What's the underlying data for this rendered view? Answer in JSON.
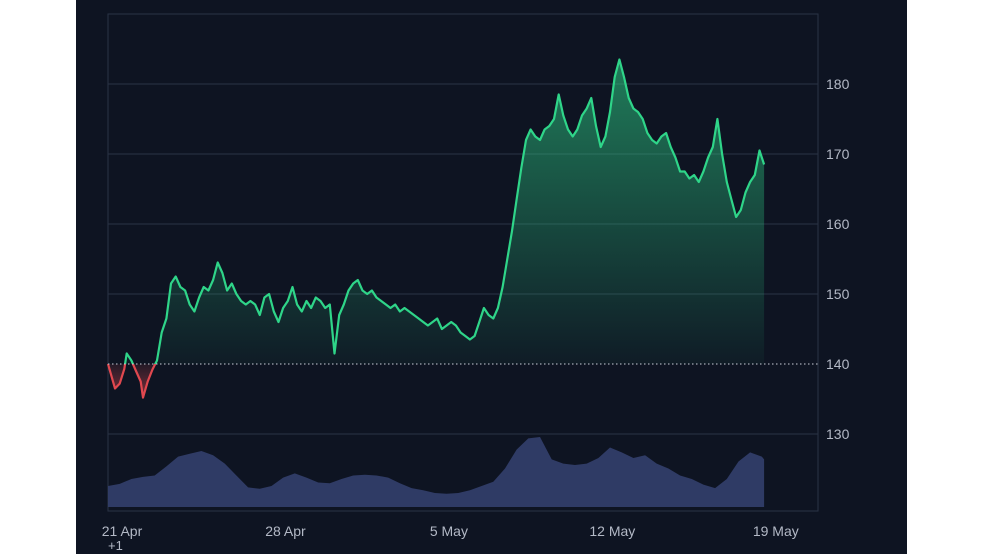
{
  "chart_data": {
    "type": "area",
    "title": "",
    "xlabel": "",
    "ylabel": "",
    "baseline": 140,
    "ylim": [
      121,
      190
    ],
    "grid": true,
    "legend": "none",
    "y_axis_side": "right",
    "x_ticks": [
      {
        "x": 0,
        "label": "21 Apr"
      },
      {
        "x": 7,
        "label": "28 Apr"
      },
      {
        "x": 14,
        "label": "5 May"
      },
      {
        "x": 21,
        "label": "12 May"
      },
      {
        "x": 28,
        "label": "19 May"
      }
    ],
    "y_ticks": [
      130,
      140,
      150,
      160,
      170,
      180
    ],
    "x_range": [
      0,
      30.3
    ],
    "price": [
      [
        0,
        140
      ],
      [
        0.3,
        136.5
      ],
      [
        0.5,
        137.2
      ],
      [
        0.7,
        139.3
      ],
      [
        0.8,
        141.5
      ],
      [
        1.0,
        140.5
      ],
      [
        1.2,
        139.0
      ],
      [
        1.4,
        137.5
      ],
      [
        1.5,
        135.2
      ],
      [
        1.7,
        137.5
      ],
      [
        1.9,
        139.2
      ],
      [
        2.1,
        140.5
      ],
      [
        2.3,
        144.5
      ],
      [
        2.5,
        146.5
      ],
      [
        2.7,
        151.5
      ],
      [
        2.9,
        152.5
      ],
      [
        3.1,
        151.0
      ],
      [
        3.3,
        150.5
      ],
      [
        3.5,
        148.5
      ],
      [
        3.7,
        147.5
      ],
      [
        3.9,
        149.5
      ],
      [
        4.1,
        151.0
      ],
      [
        4.3,
        150.5
      ],
      [
        4.5,
        152.0
      ],
      [
        4.7,
        154.5
      ],
      [
        4.9,
        153.0
      ],
      [
        5.1,
        150.5
      ],
      [
        5.3,
        151.5
      ],
      [
        5.5,
        150.0
      ],
      [
        5.7,
        149.0
      ],
      [
        5.9,
        148.5
      ],
      [
        6.1,
        149.0
      ],
      [
        6.3,
        148.5
      ],
      [
        6.5,
        147.0
      ],
      [
        6.7,
        149.5
      ],
      [
        6.9,
        150.0
      ],
      [
        7.1,
        147.5
      ],
      [
        7.3,
        146.0
      ],
      [
        7.5,
        148.0
      ],
      [
        7.7,
        149.0
      ],
      [
        7.9,
        151.0
      ],
      [
        8.1,
        148.5
      ],
      [
        8.3,
        147.5
      ],
      [
        8.5,
        149.0
      ],
      [
        8.7,
        148.0
      ],
      [
        8.9,
        149.5
      ],
      [
        9.1,
        149.0
      ],
      [
        9.3,
        148.0
      ],
      [
        9.5,
        148.5
      ],
      [
        9.7,
        141.5
      ],
      [
        9.9,
        147.0
      ],
      [
        10.1,
        148.5
      ],
      [
        10.3,
        150.5
      ],
      [
        10.5,
        151.5
      ],
      [
        10.7,
        152.0
      ],
      [
        10.9,
        150.5
      ],
      [
        11.1,
        150.0
      ],
      [
        11.3,
        150.5
      ],
      [
        11.5,
        149.5
      ],
      [
        11.7,
        149.0
      ],
      [
        11.9,
        148.5
      ],
      [
        12.1,
        148.0
      ],
      [
        12.3,
        148.5
      ],
      [
        12.5,
        147.5
      ],
      [
        12.7,
        148.0
      ],
      [
        12.9,
        147.5
      ],
      [
        13.1,
        147.0
      ],
      [
        13.3,
        146.5
      ],
      [
        13.5,
        146.0
      ],
      [
        13.7,
        145.5
      ],
      [
        13.9,
        146.0
      ],
      [
        14.1,
        146.5
      ],
      [
        14.3,
        145.0
      ],
      [
        14.5,
        145.5
      ],
      [
        14.7,
        146.0
      ],
      [
        14.9,
        145.5
      ],
      [
        15.1,
        144.5
      ],
      [
        15.3,
        144.0
      ],
      [
        15.5,
        143.5
      ],
      [
        15.7,
        144.0
      ],
      [
        15.9,
        146.0
      ],
      [
        16.1,
        148.0
      ],
      [
        16.3,
        147.0
      ],
      [
        16.5,
        146.5
      ],
      [
        16.7,
        148.0
      ],
      [
        16.9,
        151.0
      ],
      [
        17.1,
        155.0
      ],
      [
        17.3,
        159.0
      ],
      [
        17.5,
        163.5
      ],
      [
        17.7,
        168.0
      ],
      [
        17.9,
        172.0
      ],
      [
        18.1,
        173.5
      ],
      [
        18.3,
        172.5
      ],
      [
        18.5,
        172.0
      ],
      [
        18.7,
        173.5
      ],
      [
        18.9,
        174.0
      ],
      [
        19.1,
        175.0
      ],
      [
        19.3,
        178.5
      ],
      [
        19.5,
        175.5
      ],
      [
        19.7,
        173.5
      ],
      [
        19.9,
        172.5
      ],
      [
        20.1,
        173.5
      ],
      [
        20.3,
        175.5
      ],
      [
        20.5,
        176.5
      ],
      [
        20.7,
        178.0
      ],
      [
        20.9,
        174.0
      ],
      [
        21.1,
        171.0
      ],
      [
        21.3,
        172.5
      ],
      [
        21.5,
        176.0
      ],
      [
        21.7,
        181.0
      ],
      [
        21.9,
        183.5
      ],
      [
        22.1,
        181.0
      ],
      [
        22.3,
        178.0
      ],
      [
        22.5,
        176.5
      ],
      [
        22.7,
        176.0
      ],
      [
        22.9,
        175.0
      ],
      [
        23.1,
        173.0
      ],
      [
        23.3,
        172.0
      ],
      [
        23.5,
        171.5
      ],
      [
        23.7,
        172.5
      ],
      [
        23.9,
        173.0
      ],
      [
        24.1,
        171.0
      ],
      [
        24.3,
        169.5
      ],
      [
        24.5,
        167.5
      ],
      [
        24.7,
        167.5
      ],
      [
        24.9,
        166.5
      ],
      [
        25.1,
        167.0
      ],
      [
        25.3,
        166.0
      ],
      [
        25.5,
        167.5
      ],
      [
        25.7,
        169.5
      ],
      [
        25.9,
        171.0
      ],
      [
        26.1,
        175.0
      ],
      [
        26.3,
        170.0
      ],
      [
        26.5,
        166.0
      ],
      [
        26.7,
        163.5
      ],
      [
        26.9,
        161.0
      ],
      [
        27.1,
        162.0
      ],
      [
        27.3,
        164.5
      ],
      [
        27.5,
        166.0
      ],
      [
        27.7,
        167.0
      ],
      [
        27.9,
        170.5
      ],
      [
        28.0,
        169.5
      ],
      [
        28.1,
        168.5
      ]
    ],
    "volume": [
      [
        0,
        0.3
      ],
      [
        0.5,
        0.33
      ],
      [
        1.0,
        0.4
      ],
      [
        1.5,
        0.43
      ],
      [
        2.0,
        0.45
      ],
      [
        2.5,
        0.58
      ],
      [
        3.0,
        0.72
      ],
      [
        3.5,
        0.76
      ],
      [
        4.0,
        0.8
      ],
      [
        4.5,
        0.74
      ],
      [
        5.0,
        0.62
      ],
      [
        5.5,
        0.45
      ],
      [
        6.0,
        0.28
      ],
      [
        6.5,
        0.26
      ],
      [
        7.0,
        0.3
      ],
      [
        7.5,
        0.42
      ],
      [
        8.0,
        0.48
      ],
      [
        8.5,
        0.42
      ],
      [
        9.0,
        0.35
      ],
      [
        9.5,
        0.34
      ],
      [
        10.0,
        0.4
      ],
      [
        10.5,
        0.45
      ],
      [
        11.0,
        0.46
      ],
      [
        11.5,
        0.45
      ],
      [
        12.0,
        0.42
      ],
      [
        12.5,
        0.34
      ],
      [
        13.0,
        0.27
      ],
      [
        13.5,
        0.24
      ],
      [
        14.0,
        0.2
      ],
      [
        14.5,
        0.19
      ],
      [
        15.0,
        0.2
      ],
      [
        15.5,
        0.24
      ],
      [
        16.0,
        0.3
      ],
      [
        16.5,
        0.36
      ],
      [
        17.0,
        0.55
      ],
      [
        17.5,
        0.82
      ],
      [
        18.0,
        0.98
      ],
      [
        18.5,
        1.0
      ],
      [
        19.0,
        0.68
      ],
      [
        19.5,
        0.62
      ],
      [
        20.0,
        0.6
      ],
      [
        20.5,
        0.62
      ],
      [
        21.0,
        0.7
      ],
      [
        21.5,
        0.85
      ],
      [
        22.0,
        0.78
      ],
      [
        22.5,
        0.7
      ],
      [
        23.0,
        0.74
      ],
      [
        23.5,
        0.62
      ],
      [
        24.0,
        0.55
      ],
      [
        24.5,
        0.45
      ],
      [
        25.0,
        0.4
      ],
      [
        25.5,
        0.32
      ],
      [
        26.0,
        0.27
      ],
      [
        26.5,
        0.4
      ],
      [
        27.0,
        0.65
      ],
      [
        27.5,
        0.78
      ],
      [
        28.0,
        0.72
      ],
      [
        28.1,
        0.68
      ]
    ],
    "colors": {
      "background": "#0e1422",
      "up_line": "#2fd589",
      "down_line": "#e0484f",
      "volume": "#323d69",
      "grid": "#2a3345",
      "baseline": "#c9ced8"
    }
  },
  "footer": {
    "label": "+1"
  }
}
